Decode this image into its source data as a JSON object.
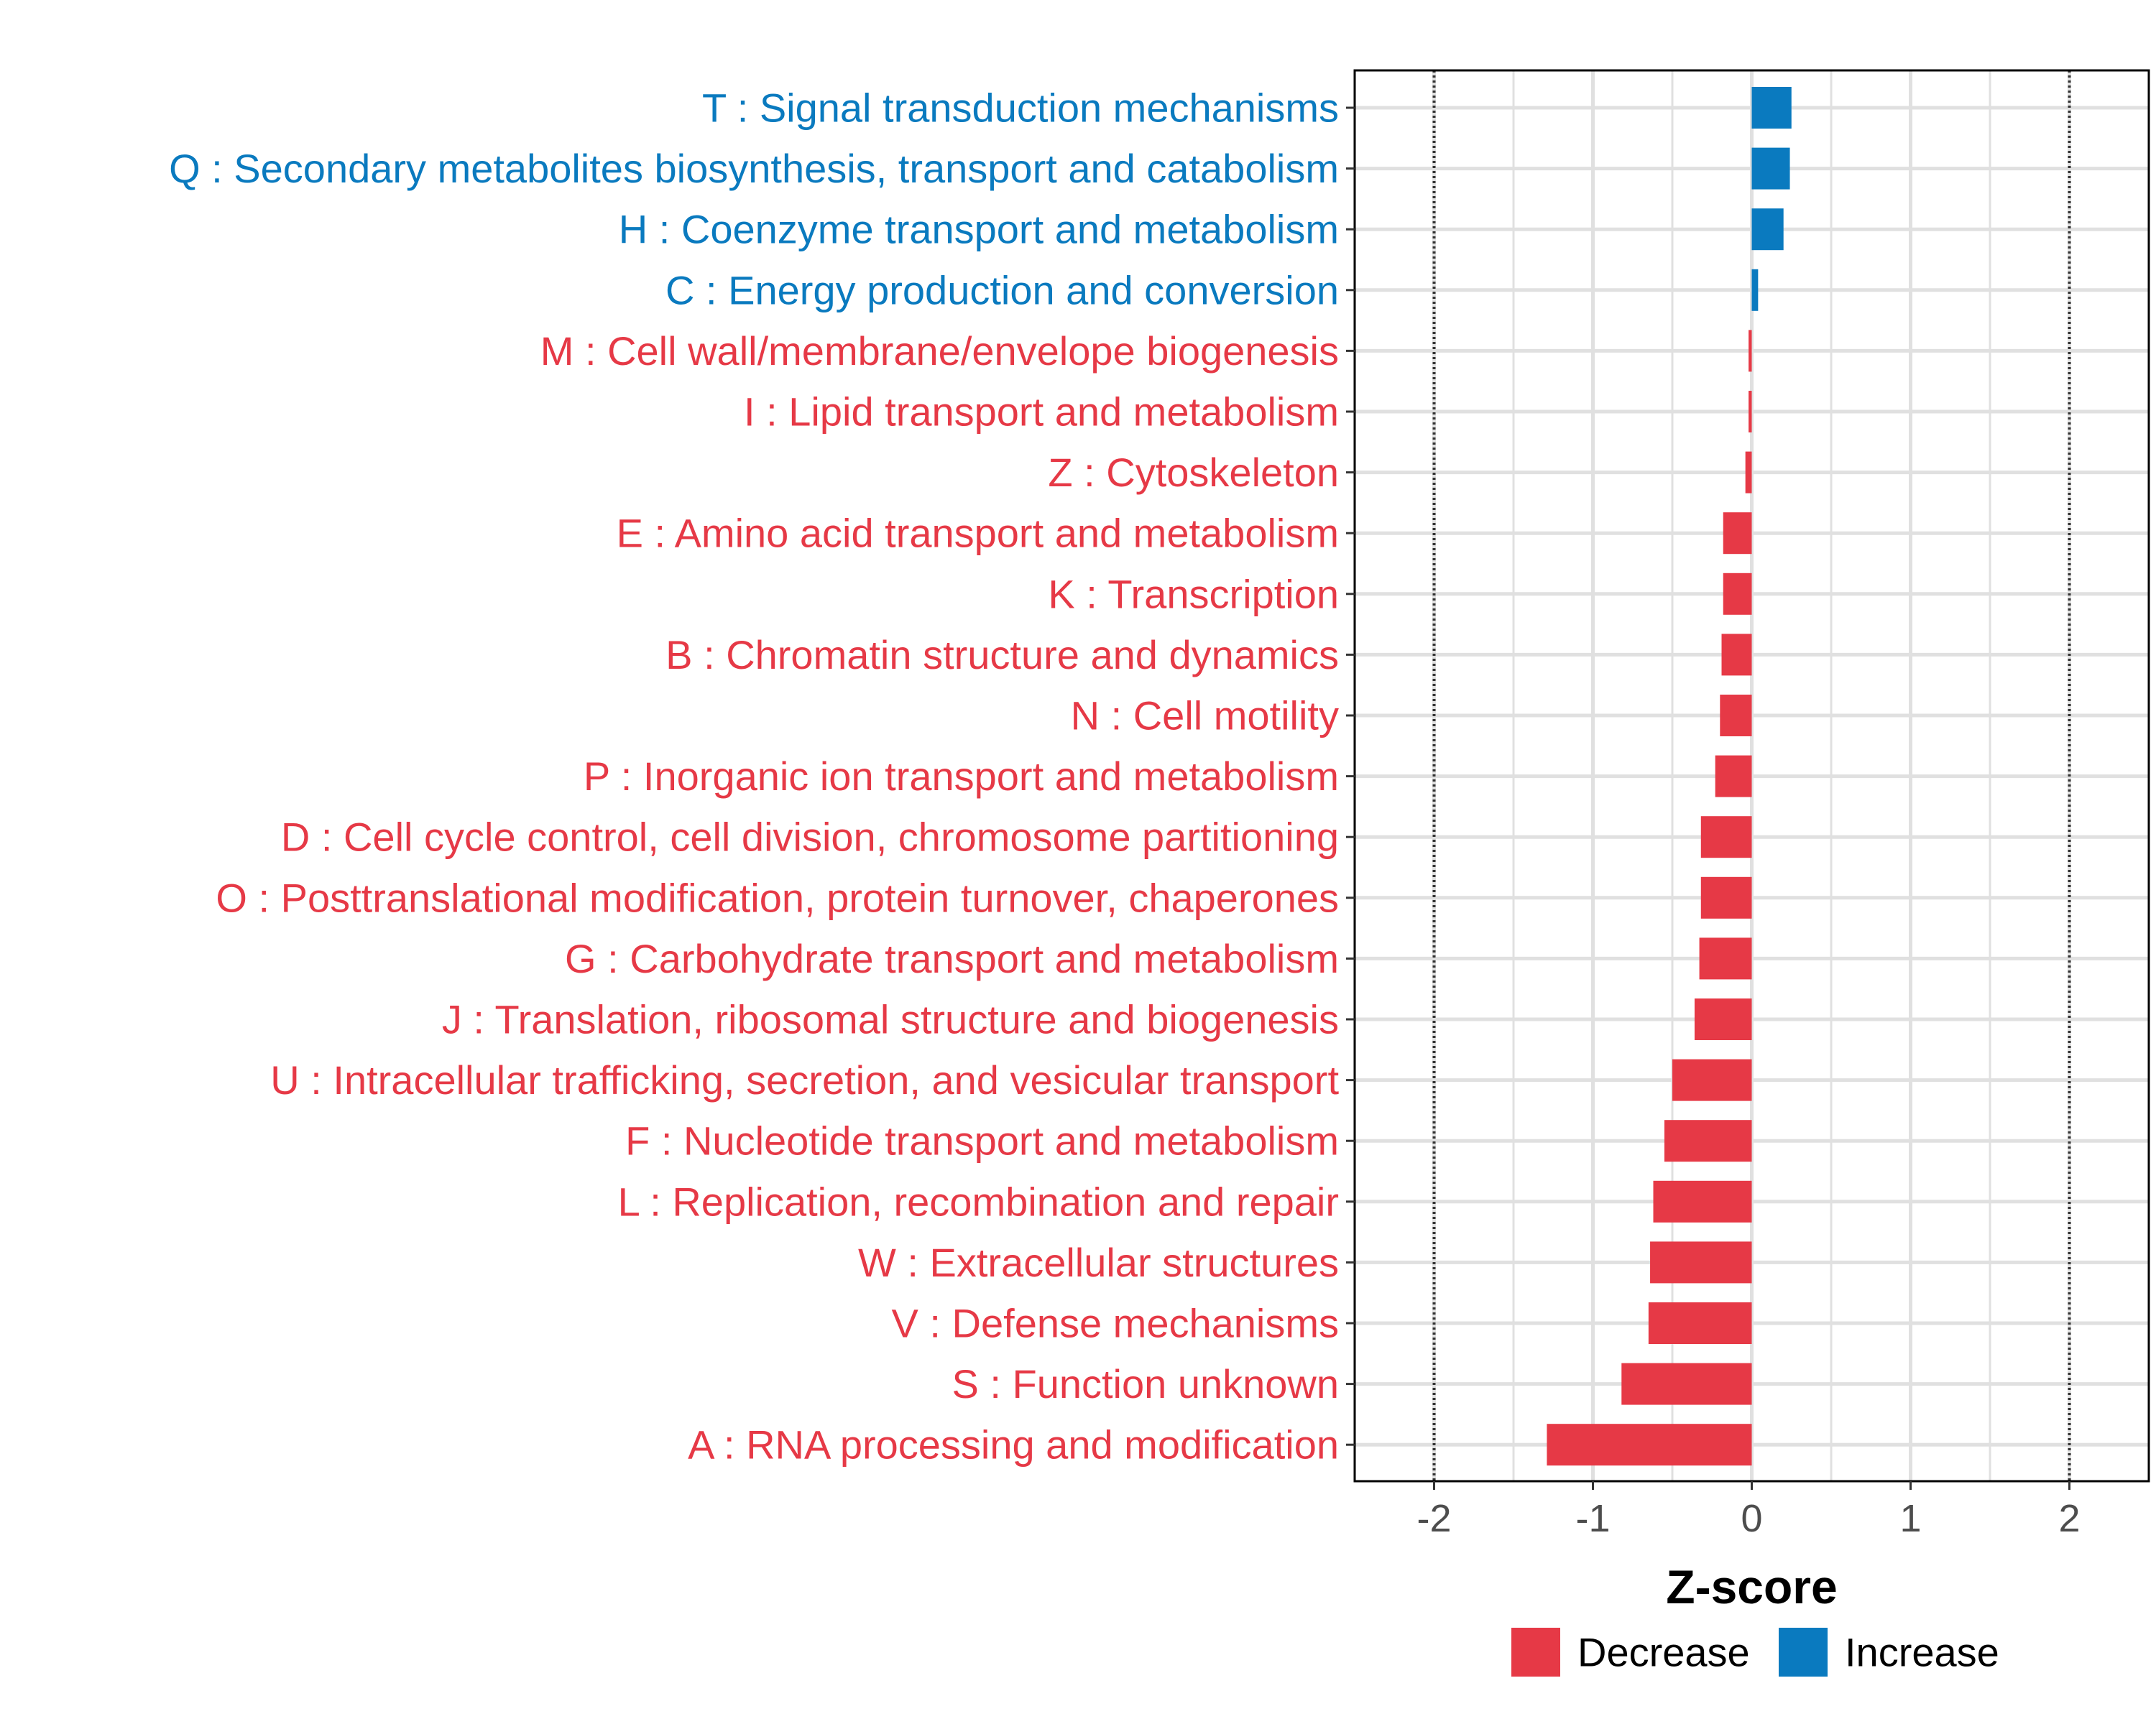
{
  "chart_data": {
    "type": "bar",
    "orientation": "horizontal",
    "xlabel": "Z-score",
    "xlim": [
      -2.5,
      2.5
    ],
    "xticks": [
      -2,
      -1,
      0,
      1,
      2
    ],
    "xtick_labels": [
      "-2",
      "-1",
      "0",
      "1",
      "2"
    ],
    "reference_lines": [
      -2,
      2
    ],
    "grid": true,
    "legend_position": "bottom",
    "legend": [
      {
        "key": "decrease",
        "label": "Decrease",
        "color": "#E63946"
      },
      {
        "key": "increase",
        "label": "Increase",
        "color": "#0A7ABF"
      }
    ],
    "categories": [
      "T : Signal transduction mechanisms",
      "Q : Secondary metabolites biosynthesis, transport and catabolism",
      "H : Coenzyme transport and metabolism",
      "C : Energy production and conversion",
      "M : Cell wall/membrane/envelope biogenesis",
      "I : Lipid transport and metabolism",
      "Z : Cytoskeleton",
      "E : Amino acid transport and metabolism",
      "K : Transcription",
      "B : Chromatin structure and dynamics",
      "N : Cell motility",
      "P : Inorganic ion transport and metabolism",
      "D : Cell cycle control, cell division, chromosome partitioning",
      "O : Posttranslational modification, protein turnover, chaperones",
      "G : Carbohydrate transport and metabolism",
      "J : Translation, ribosomal structure and biogenesis",
      "U : Intracellular trafficking, secretion, and vesicular transport",
      "F : Nucleotide transport and metabolism",
      "L : Replication, recombination and repair",
      "W : Extracellular structures",
      "V : Defense mechanisms",
      "S : Function unknown",
      "A : RNA processing and modification"
    ],
    "values": [
      0.25,
      0.24,
      0.2,
      0.04,
      -0.02,
      -0.02,
      -0.04,
      -0.18,
      -0.18,
      -0.19,
      -0.2,
      -0.23,
      -0.32,
      -0.32,
      -0.33,
      -0.36,
      -0.5,
      -0.55,
      -0.62,
      -0.64,
      -0.65,
      -0.82,
      -1.29
    ],
    "groups": [
      "increase",
      "increase",
      "increase",
      "increase",
      "decrease",
      "decrease",
      "decrease",
      "decrease",
      "decrease",
      "decrease",
      "decrease",
      "decrease",
      "decrease",
      "decrease",
      "decrease",
      "decrease",
      "decrease",
      "decrease",
      "decrease",
      "decrease",
      "decrease",
      "decrease",
      "decrease"
    ]
  }
}
